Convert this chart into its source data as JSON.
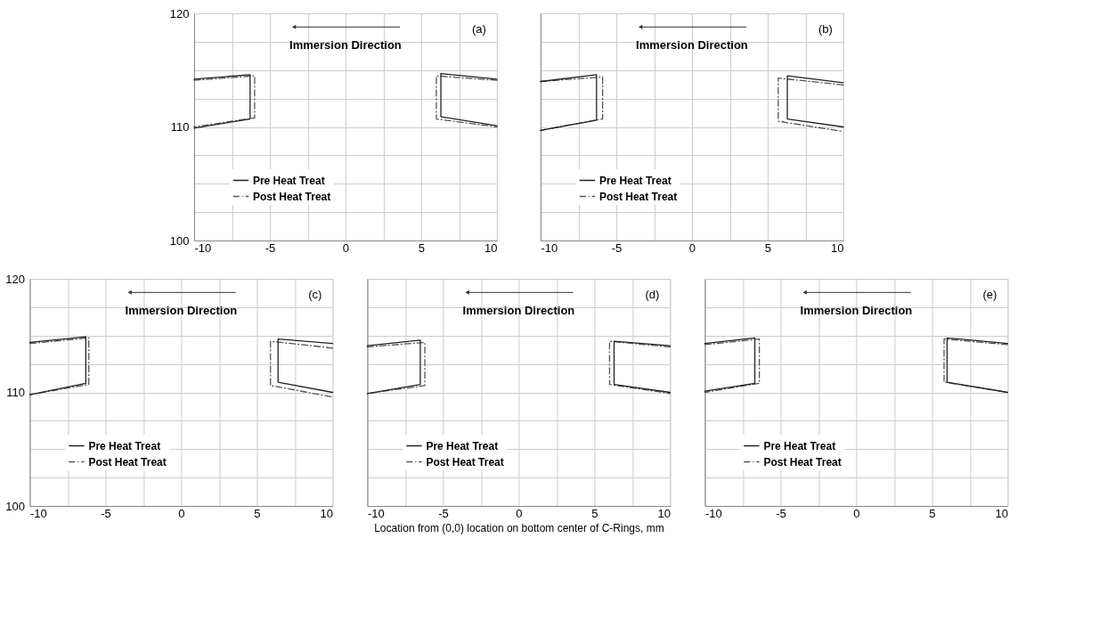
{
  "chart_data": [
    {
      "type": "line",
      "annotations": [
        "Immersion Direction",
        "(a)"
      ],
      "xlim": [
        -10,
        10
      ],
      "ylim": [
        100,
        120
      ],
      "xticks": [
        -10,
        {
          "value": -7.5,
          "label": null
        },
        -5,
        {
          "value": -2.5,
          "label": null
        },
        0,
        {
          "value": 2.5,
          "label": null
        },
        5,
        {
          "value": 7.5,
          "label": null
        },
        10
      ],
      "yticks": [
        100,
        {
          "value": 102.5,
          "label": null
        },
        {
          "value": 105,
          "label": null
        },
        {
          "value": 107.5,
          "label": null
        },
        110,
        {
          "value": 112.5,
          "label": null
        },
        {
          "value": 115,
          "label": null
        },
        {
          "value": 117.5,
          "label": null
        },
        120
      ],
      "grid": true,
      "legend": "bottom left",
      "series": [
        {
          "name": "Pre Heat Treat",
          "color": "#222222",
          "line_style": "solid",
          "x": [
            -10,
            -6.3,
            -6.3,
            -10,
            null,
            10,
            6.3,
            6.3,
            10
          ],
          "values": [
            114.2,
            114.6,
            110.7,
            109.9,
            null,
            114.2,
            114.7,
            110.9,
            110.1
          ]
        },
        {
          "name": "Post Heat Treat",
          "color": "#555555",
          "line_style": "dashed",
          "x": [
            -10,
            -6.0,
            -6.0,
            -10,
            null,
            10,
            6.0,
            6.0,
            10
          ],
          "values": [
            114.1,
            114.5,
            110.8,
            110.0,
            null,
            114.1,
            114.5,
            110.7,
            110.0
          ]
        }
      ]
    },
    {
      "type": "line",
      "annotations": [
        "Immersion Direction",
        "(b)"
      ],
      "xlim": [
        -10,
        10
      ],
      "ylim": [
        100,
        120
      ],
      "tick_labels": "x",
      "xticks": [
        -10,
        {
          "value": -7.5,
          "label": null
        },
        -5,
        {
          "value": -2.5,
          "label": null
        },
        0,
        {
          "value": 2.5,
          "label": null
        },
        5,
        {
          "value": 7.5,
          "label": null
        },
        10
      ],
      "yticks": [
        100,
        {
          "value": 102.5,
          "label": null
        },
        {
          "value": 105,
          "label": null
        },
        {
          "value": 107.5,
          "label": null
        },
        110,
        {
          "value": 112.5,
          "label": null
        },
        {
          "value": 115,
          "label": null
        },
        {
          "value": 117.5,
          "label": null
        },
        120
      ],
      "grid": true,
      "legend": "bottom left",
      "series": [
        {
          "name": "Pre Heat Treat",
          "color": "#222222",
          "line_style": "solid",
          "x": [
            -10,
            -6.3,
            -6.3,
            -10,
            null,
            10,
            6.3,
            6.3,
            10
          ],
          "values": [
            114.0,
            114.6,
            110.6,
            109.7,
            null,
            113.9,
            114.5,
            110.7,
            110.0
          ]
        },
        {
          "name": "Post Heat Treat",
          "color": "#555555",
          "line_style": "dashed",
          "x": [
            -10,
            -5.9,
            -5.9,
            -10,
            null,
            10,
            5.7,
            5.7,
            10
          ],
          "values": [
            114.0,
            114.4,
            110.7,
            109.7,
            null,
            113.7,
            114.3,
            110.5,
            109.6
          ]
        }
      ]
    },
    {
      "type": "line",
      "annotations": [
        "Immersion Direction",
        "(c)"
      ],
      "xlim": [
        -10,
        10
      ],
      "ylim": [
        100,
        120
      ],
      "xticks": [
        -10,
        {
          "value": -7.5,
          "label": null
        },
        -5,
        {
          "value": -2.5,
          "label": null
        },
        0,
        {
          "value": 2.5,
          "label": null
        },
        5,
        {
          "value": 7.5,
          "label": null
        },
        10
      ],
      "yticks": [
        100,
        {
          "value": 102.5,
          "label": null
        },
        {
          "value": 105,
          "label": null
        },
        {
          "value": 107.5,
          "label": null
        },
        110,
        {
          "value": 112.5,
          "label": null
        },
        {
          "value": 115,
          "label": null
        },
        {
          "value": 117.5,
          "label": null
        },
        120
      ],
      "grid": true,
      "legend": "bottom left",
      "series": [
        {
          "name": "Pre Heat Treat",
          "color": "#222222",
          "line_style": "solid",
          "x": [
            -10,
            -6.3,
            -6.3,
            -10,
            null,
            10,
            6.4,
            6.4,
            10
          ],
          "values": [
            114.4,
            114.9,
            110.8,
            109.8,
            null,
            114.3,
            114.7,
            110.9,
            110.0
          ]
        },
        {
          "name": "Post Heat Treat",
          "color": "#555555",
          "line_style": "dashed",
          "x": [
            -10,
            -6.1,
            -6.1,
            -10,
            null,
            10,
            5.9,
            5.9,
            10
          ],
          "values": [
            114.3,
            114.8,
            110.7,
            109.8,
            null,
            113.9,
            114.5,
            110.6,
            109.6
          ]
        }
      ]
    },
    {
      "type": "line",
      "xlabel": "Location from (0,0) location on bottom center of C-Rings, mm",
      "annotations": [
        "Immersion Direction",
        "(d)"
      ],
      "xlim": [
        -10,
        10
      ],
      "ylim": [
        100,
        120
      ],
      "tick_labels": "x",
      "xticks": [
        -10,
        {
          "value": -7.5,
          "label": null
        },
        -5,
        {
          "value": -2.5,
          "label": null
        },
        0,
        {
          "value": 2.5,
          "label": null
        },
        5,
        {
          "value": 7.5,
          "label": null
        },
        10
      ],
      "yticks": [
        100,
        {
          "value": 102.5,
          "label": null
        },
        {
          "value": 105,
          "label": null
        },
        {
          "value": 107.5,
          "label": null
        },
        110,
        {
          "value": 112.5,
          "label": null
        },
        {
          "value": 115,
          "label": null
        },
        {
          "value": 117.5,
          "label": null
        },
        120
      ],
      "grid": true,
      "legend": "bottom left",
      "series": [
        {
          "name": "Pre Heat Treat",
          "color": "#222222",
          "line_style": "solid",
          "x": [
            -10,
            -6.5,
            -6.5,
            -10,
            null,
            10,
            6.3,
            6.3,
            10
          ],
          "values": [
            114.1,
            114.6,
            110.7,
            109.9,
            null,
            114.1,
            114.5,
            110.7,
            110.0
          ]
        },
        {
          "name": "Post Heat Treat",
          "color": "#555555",
          "line_style": "dashed",
          "x": [
            -10,
            -6.2,
            -6.2,
            -10,
            null,
            10,
            6.0,
            6.0,
            10
          ],
          "values": [
            114.0,
            114.4,
            110.6,
            109.9,
            null,
            114.0,
            114.5,
            110.7,
            109.9
          ]
        }
      ]
    },
    {
      "type": "line",
      "annotations": [
        "Immersion Direction",
        "(e)"
      ],
      "xlim": [
        -10,
        10
      ],
      "ylim": [
        100,
        120
      ],
      "tick_labels": "x",
      "xticks": [
        -10,
        {
          "value": -7.5,
          "label": null
        },
        -5,
        {
          "value": -2.5,
          "label": null
        },
        0,
        {
          "value": 2.5,
          "label": null
        },
        5,
        {
          "value": 7.5,
          "label": null
        },
        10
      ],
      "yticks": [
        100,
        {
          "value": 102.5,
          "label": null
        },
        {
          "value": 105,
          "label": null
        },
        {
          "value": 107.5,
          "label": null
        },
        110,
        {
          "value": 112.5,
          "label": null
        },
        {
          "value": 115,
          "label": null
        },
        {
          "value": 117.5,
          "label": null
        },
        120
      ],
      "grid": true,
      "legend": "bottom left",
      "series": [
        {
          "name": "Pre Heat Treat",
          "color": "#222222",
          "line_style": "solid",
          "x": [
            -10,
            -6.7,
            -6.7,
            -10,
            null,
            10,
            6.0,
            6.0,
            10
          ],
          "values": [
            114.3,
            114.8,
            110.8,
            110.1,
            null,
            114.3,
            114.8,
            110.9,
            110.0
          ]
        },
        {
          "name": "Post Heat Treat",
          "color": "#555555",
          "line_style": "dashed",
          "x": [
            -10,
            -6.4,
            -6.4,
            -10,
            null,
            10,
            5.8,
            5.8,
            10
          ],
          "values": [
            114.2,
            114.7,
            110.8,
            110.0,
            null,
            114.2,
            114.7,
            110.9,
            110.0
          ]
        }
      ]
    }
  ]
}
